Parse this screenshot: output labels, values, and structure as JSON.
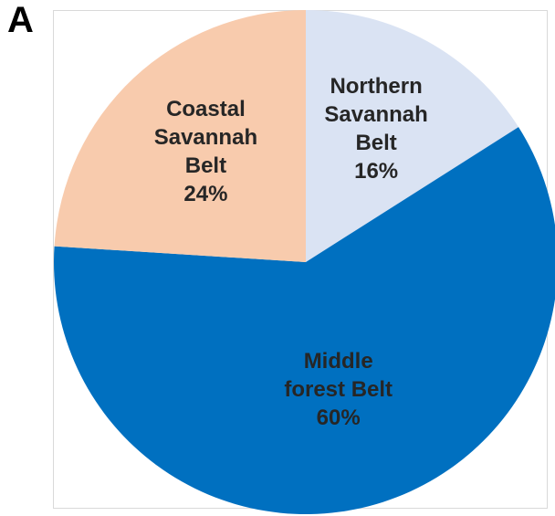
{
  "panel_label": "A",
  "chart_data": {
    "type": "pie",
    "title": "",
    "legend": "none",
    "slices": [
      {
        "label_lines": [
          "Northern",
          "Savannah",
          "Belt"
        ],
        "percent_label": "16%",
        "value": 16,
        "color": "#dae3f3"
      },
      {
        "label_lines": [
          "Middle",
          "forest Belt"
        ],
        "percent_label": "60%",
        "value": 60,
        "color": "#0070c0"
      },
      {
        "label_lines": [
          "Coastal",
          "Savannah",
          "Belt"
        ],
        "percent_label": "24%",
        "value": 24,
        "color": "#f8cbad"
      }
    ]
  }
}
